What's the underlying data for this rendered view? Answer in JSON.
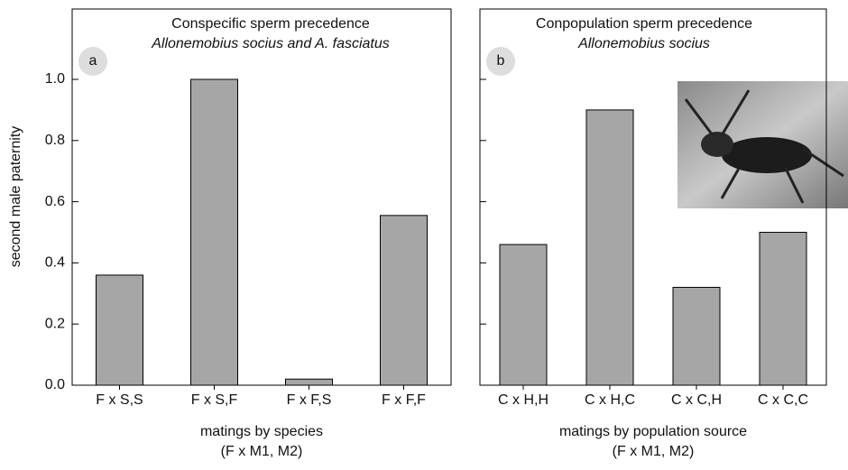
{
  "chart_data": [
    {
      "type": "bar",
      "panel": "a",
      "title": "Conspecific sperm precedence",
      "subtitle": "Allonemobius socius and A. fasciatus",
      "ylabel": "second male paternity",
      "xlabel": [
        "matings by species",
        "(F x M1, M2)"
      ],
      "categories": [
        "F x S,S",
        "F x S,F",
        "F x F,S",
        "F x F,F"
      ],
      "values": [
        0.36,
        1.0,
        0.02,
        0.555
      ],
      "color": "#a6a6a6",
      "ylim": [
        0,
        1.23
      ],
      "yticks": [
        {
          "value": 0,
          "label": "0.0"
        },
        0.2,
        0.4,
        0.6,
        0.8,
        {
          "value": 1,
          "label": "1.0"
        }
      ],
      "ytick_labels": true
    },
    {
      "type": "bar",
      "panel": "b",
      "title": "Conpopulation sperm precedence",
      "subtitle": "Allonemobius socius",
      "xlabel": [
        "matings by population source",
        "(F x M1, M2)"
      ],
      "categories": [
        "C x H,H",
        "C x H,C",
        "C x C,H",
        "C x C,C"
      ],
      "values": [
        0.46,
        0.9,
        0.32,
        0.5
      ],
      "color": "#a6a6a6",
      "ylim": [
        0,
        1.23
      ],
      "yticks": [
        0,
        0.2,
        0.4,
        0.6,
        0.8,
        1
      ],
      "ytick_labels": false
    }
  ]
}
